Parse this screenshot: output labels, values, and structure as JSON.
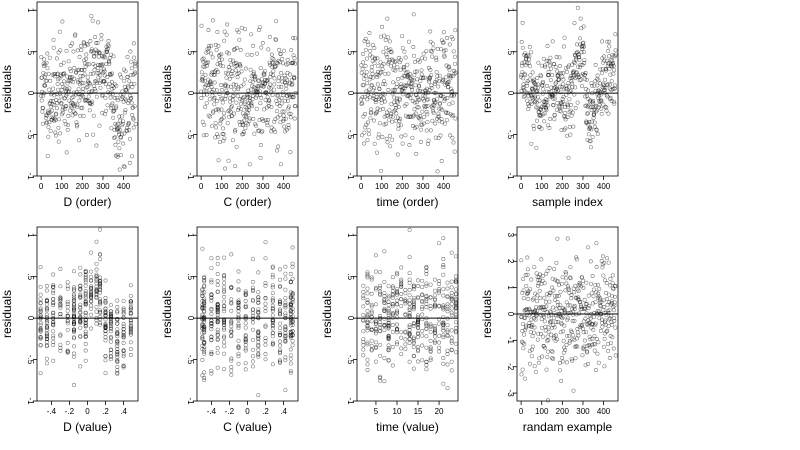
{
  "figure": {
    "title": "",
    "layout": {
      "rows": 2,
      "cols": 4
    }
  },
  "chart_data": [
    {
      "type": "scatter",
      "xlabel": "D (order)",
      "ylabel": "residuals",
      "xlim": [
        -20,
        470
      ],
      "ylim": [
        -1.0,
        1.1
      ],
      "xticks": [
        0,
        100,
        200,
        300,
        400
      ],
      "yticks": [
        -1.0,
        -0.5,
        0.0,
        0.5,
        1.0
      ],
      "hline": 0,
      "pattern": "order",
      "drift": [
        [
          0,
          0.05
        ],
        [
          60,
          -0.05
        ],
        [
          100,
          0.05
        ],
        [
          150,
          0.0
        ],
        [
          200,
          0.15
        ],
        [
          260,
          0.2
        ],
        [
          320,
          0.3
        ],
        [
          345,
          0.1
        ],
        [
          355,
          -0.25
        ],
        [
          390,
          -0.3
        ],
        [
          420,
          0.0
        ],
        [
          450,
          -0.1
        ]
      ],
      "n": 460,
      "seed": 11,
      "spread": 0.3
    },
    {
      "type": "scatter",
      "xlabel": "C (order)",
      "ylabel": "residuals",
      "xlim": [
        -20,
        470
      ],
      "ylim": [
        -1.0,
        1.1
      ],
      "xticks": [
        0,
        100,
        200,
        300,
        400
      ],
      "yticks": [
        -1.0,
        -0.5,
        0.0,
        0.5,
        1.0
      ],
      "hline": 0,
      "pattern": "order",
      "drift": [
        [
          0,
          0.1
        ],
        [
          100,
          0.05
        ],
        [
          200,
          0.0
        ],
        [
          300,
          0.05
        ],
        [
          460,
          0.05
        ]
      ],
      "n": 460,
      "seed": 22,
      "spread": 0.32
    },
    {
      "type": "scatter",
      "xlabel": "time (order)",
      "ylabel": "residuals",
      "xlim": [
        -20,
        470
      ],
      "ylim": [
        -1.0,
        1.1
      ],
      "xticks": [
        0,
        100,
        200,
        300,
        400
      ],
      "yticks": [
        -1.0,
        -0.5,
        0.0,
        0.5,
        1.0
      ],
      "hline": 0,
      "pattern": "order",
      "drift": [
        [
          0,
          0.0
        ],
        [
          150,
          0.05
        ],
        [
          300,
          0.05
        ],
        [
          460,
          0.1
        ]
      ],
      "n": 460,
      "seed": 33,
      "spread": 0.33
    },
    {
      "type": "scatter",
      "xlabel": "sample index",
      "ylabel": "residuals",
      "xlim": [
        -20,
        470
      ],
      "ylim": [
        -1.0,
        1.1
      ],
      "xticks": [
        0,
        100,
        200,
        300,
        400
      ],
      "yticks": [
        -1.0,
        -0.5,
        0.0,
        0.5,
        1.0
      ],
      "hline": 0,
      "pattern": "order",
      "drift": [
        [
          0,
          0.25
        ],
        [
          40,
          0.1
        ],
        [
          80,
          -0.1
        ],
        [
          120,
          0.0
        ],
        [
          180,
          0.1
        ],
        [
          230,
          0.0
        ],
        [
          280,
          0.4
        ],
        [
          300,
          0.5
        ],
        [
          320,
          -0.3
        ],
        [
          360,
          -0.2
        ],
        [
          400,
          0.15
        ],
        [
          460,
          0.3
        ]
      ],
      "n": 460,
      "seed": 44,
      "spread": 0.26
    },
    {
      "type": "scatter",
      "xlabel": "D (value)",
      "ylabel": "residuals",
      "xlim": [
        -0.56,
        0.56
      ],
      "ylim": [
        -1.0,
        1.1
      ],
      "xticks": [
        -0.4,
        -0.2,
        0.0,
        0.2,
        0.4
      ],
      "yticks": [
        -1.0,
        -0.5,
        0.0,
        0.5,
        1.0
      ],
      "hline": 0,
      "pattern": "discrete",
      "xvals": [
        -0.52,
        -0.45,
        -0.38,
        -0.3,
        -0.22,
        -0.15,
        -0.08,
        -0.02,
        0.04,
        0.1,
        0.14,
        0.2,
        0.26,
        0.33,
        0.4,
        0.48
      ],
      "drift": [
        [
          -0.52,
          0.0
        ],
        [
          -0.2,
          0.0
        ],
        [
          0.1,
          0.3
        ],
        [
          0.14,
          0.35
        ],
        [
          0.2,
          0.0
        ],
        [
          0.33,
          -0.3
        ],
        [
          0.48,
          0.0
        ]
      ],
      "n": 460,
      "seed": 55,
      "spread": 0.25
    },
    {
      "type": "scatter",
      "xlabel": "C (value)",
      "ylabel": "residuals",
      "xlim": [
        -0.56,
        0.56
      ],
      "ylim": [
        -1.0,
        1.1
      ],
      "xticks": [
        -0.4,
        -0.2,
        0.0,
        0.2,
        0.4
      ],
      "yticks": [
        -1.0,
        -0.5,
        0.0,
        0.5,
        1.0
      ],
      "hline": 0,
      "pattern": "discrete",
      "xvals": [
        -0.5,
        -0.48,
        -0.4,
        -0.33,
        -0.26,
        -0.18,
        -0.1,
        -0.02,
        0.06,
        0.12,
        0.2,
        0.28,
        0.36,
        0.42,
        0.48,
        0.5
      ],
      "drift": [
        [
          -0.5,
          0.0
        ],
        [
          0.5,
          0.0
        ]
      ],
      "n": 460,
      "seed": 66,
      "spread": 0.32
    },
    {
      "type": "scatter",
      "xlabel": "time (value)",
      "ylabel": "residuals",
      "xlim": [
        0.5,
        24.5
      ],
      "ylim": [
        -1.0,
        1.1
      ],
      "xticks": [
        5,
        10,
        15,
        20
      ],
      "yticks": [
        -1.0,
        -0.5,
        0.0,
        0.5,
        1.0
      ],
      "hline": 0,
      "pattern": "discrete",
      "xvals": [
        2,
        3,
        4,
        5,
        6,
        7,
        8,
        9,
        10,
        11,
        12,
        13,
        14,
        15,
        16,
        17,
        18,
        19,
        20,
        21,
        22,
        23,
        24
      ],
      "drift": [
        [
          2,
          0.0
        ],
        [
          24,
          0.05
        ]
      ],
      "n": 460,
      "seed": 77,
      "spread": 0.33
    },
    {
      "type": "scatter",
      "xlabel": "randam example",
      "ylabel": "residuals",
      "xlim": [
        -20,
        470
      ],
      "ylim": [
        -3.3,
        3.3
      ],
      "xticks": [
        0,
        100,
        200,
        300,
        400
      ],
      "yticks": [
        -3,
        -2,
        -1,
        0,
        1,
        2,
        3
      ],
      "hline": 0,
      "pattern": "order",
      "drift": [
        [
          0,
          0.0
        ],
        [
          460,
          0.0
        ]
      ],
      "n": 460,
      "seed": 88,
      "spread": 1.0
    }
  ]
}
